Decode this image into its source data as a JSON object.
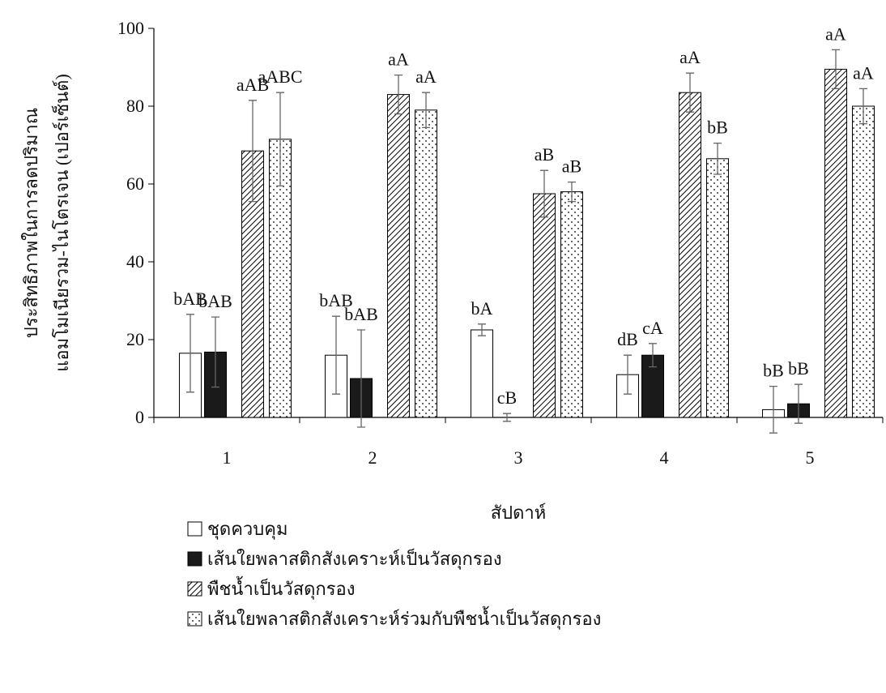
{
  "chart_data": {
    "type": "bar",
    "y_label_lines": [
      "ประสิทธิภาพในการลดปริมาณ",
      "แอมโมเนียรวม-ไนโตรเจน (เปอร์เซ็นต์)"
    ],
    "x_label": "สัปดาห์",
    "categories": [
      "1",
      "2",
      "3",
      "4",
      "5"
    ],
    "ylim": [
      0,
      100
    ],
    "yticks": [
      0,
      20,
      40,
      60,
      80,
      100
    ],
    "series": [
      {
        "name": "ชุดควบคุม",
        "color": "#ffffff",
        "pattern": "none",
        "values": [
          16.5,
          16,
          22.5,
          11,
          2
        ],
        "errors": [
          10,
          10,
          1.5,
          5,
          6
        ],
        "letters": [
          "bAB",
          "bAB",
          "bA",
          "dB",
          "bB"
        ]
      },
      {
        "name": "เส้นใยพลาสติกสังเคราะห์เป็นวัสดุกรอง",
        "color": "#1a1a1a",
        "pattern": "solid",
        "values": [
          16.8,
          10,
          0,
          16,
          3.5
        ],
        "errors": [
          9,
          12.5,
          1,
          3,
          5
        ],
        "letters": [
          "bAB",
          "bAB",
          "cB",
          "cA",
          "bB"
        ]
      },
      {
        "name": "พืชน้ำเป็นวัสดุกรอง",
        "color": "#000000",
        "pattern": "hatch",
        "values": [
          68.5,
          83,
          57.5,
          83.5,
          89.5
        ],
        "errors": [
          13,
          5,
          6,
          5,
          5
        ],
        "letters": [
          "aAB",
          "aA",
          "aB",
          "aA",
          "aA"
        ]
      },
      {
        "name": "เส้นใยพลาสติกสังเคราะห์ร่วมกับพืชน้ำเป็นวัสดุกรอง",
        "color": "#000000",
        "pattern": "dots",
        "values": [
          71.5,
          79,
          58,
          66.5,
          80
        ],
        "errors": [
          12,
          4.5,
          2.5,
          4,
          4.5
        ],
        "letters": [
          "aABC",
          "aA",
          "aB",
          "bB",
          "aA"
        ]
      }
    ]
  }
}
